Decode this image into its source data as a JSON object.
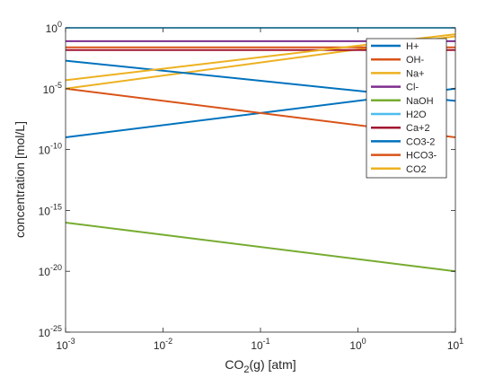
{
  "chart_data": {
    "type": "line",
    "title": "",
    "xlabel": "CO2(g) [atm]",
    "ylabel": "concentration [mol/L]",
    "xscale": "log",
    "yscale": "log",
    "xlim": [
      0.001,
      10
    ],
    "ylim": [
      1e-25,
      1
    ],
    "grid": false,
    "legend_position": "top-right",
    "xticks": [
      {
        "value": 0.001,
        "base": "10",
        "exp": "-3"
      },
      {
        "value": 0.01,
        "base": "10",
        "exp": "-2"
      },
      {
        "value": 0.1,
        "base": "10",
        "exp": "-1"
      },
      {
        "value": 1,
        "base": "10",
        "exp": "0"
      },
      {
        "value": 10,
        "base": "10",
        "exp": "1"
      }
    ],
    "yticks": [
      {
        "value": 1e-25,
        "base": "10",
        "exp": "-25"
      },
      {
        "value": 1e-20,
        "base": "10",
        "exp": "-20"
      },
      {
        "value": 1e-15,
        "base": "10",
        "exp": "-15"
      },
      {
        "value": 1e-10,
        "base": "10",
        "exp": "-10"
      },
      {
        "value": 1e-05,
        "base": "10",
        "exp": "-5"
      },
      {
        "value": 1,
        "base": "10",
        "exp": "0"
      }
    ],
    "x": [
      0.001,
      10
    ],
    "series": [
      {
        "name": "H+",
        "color": "#0072BD",
        "values": [
          1e-09,
          1e-05
        ]
      },
      {
        "name": "OH-",
        "color": "#D95319",
        "values": [
          1e-05,
          1e-09
        ]
      },
      {
        "name": "Na+",
        "color": "#EDB120",
        "values": [
          1e-05,
          0.2
        ]
      },
      {
        "name": "Cl-",
        "color": "#7E2F8E",
        "values": [
          0.08,
          0.08
        ]
      },
      {
        "name": "NaOH",
        "color": "#77AC30",
        "values": [
          1e-16,
          1e-20
        ]
      },
      {
        "name": "H2O",
        "color": "#4DBEEE",
        "values": [
          1,
          1
        ]
      },
      {
        "name": "Ca+2",
        "color": "#A2142F",
        "values": [
          0.015,
          0.015
        ]
      },
      {
        "name": "CO3-2",
        "color": "#0072BD",
        "values": [
          0.002,
          1e-06
        ]
      },
      {
        "name": "HCO3-",
        "color": "#D95319",
        "values": [
          0.025,
          0.025
        ]
      },
      {
        "name": "CO2",
        "color": "#EDB120",
        "values": [
          5e-05,
          0.3
        ]
      }
    ]
  }
}
